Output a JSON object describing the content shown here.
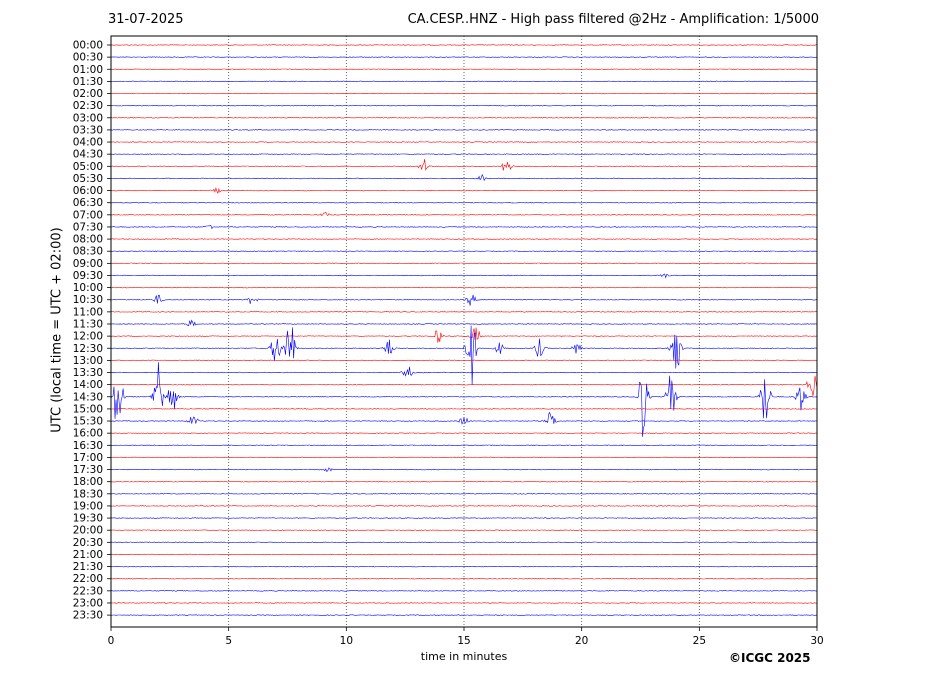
{
  "header": {
    "date": "31-07-2025",
    "title": "CA.CESP..HNZ - High pass filtered @2Hz - Amplification: 1/5000"
  },
  "footer": {
    "copyright": "©ICGC 2025"
  },
  "chart_data": {
    "type": "line",
    "title": "CA.CESP..HNZ - High pass filtered @2Hz - Amplification: 1/5000",
    "xlabel": "time in minutes",
    "ylabel": "UTC (local time = UTC + 02:00)",
    "xlim": [
      0,
      30
    ],
    "x_ticks": [
      0,
      5,
      10,
      15,
      20,
      25,
      30
    ],
    "y_ticks": [
      "00:00",
      "00:30",
      "01:00",
      "01:30",
      "02:00",
      "02:30",
      "03:00",
      "03:30",
      "04:00",
      "04:30",
      "05:00",
      "05:30",
      "06:00",
      "06:30",
      "07:00",
      "07:30",
      "08:00",
      "08:30",
      "09:00",
      "09:30",
      "10:00",
      "10:30",
      "11:00",
      "11:30",
      "12:00",
      "12:30",
      "13:00",
      "13:30",
      "14:00",
      "14:30",
      "15:00",
      "15:30",
      "16:00",
      "16:30",
      "17:00",
      "17:30",
      "18:00",
      "18:30",
      "19:00",
      "19:30",
      "20:00",
      "20:30",
      "21:00",
      "21:30",
      "22:00",
      "22:30",
      "23:00",
      "23:30"
    ],
    "trace_colors": [
      "#ff0000",
      "#0000ff"
    ],
    "grid": "vertical dotted at x ticks",
    "events": [
      {
        "row": "05:00",
        "t": 13.3,
        "amp": 0.6
      },
      {
        "row": "05:00",
        "t": 16.8,
        "amp": 0.9
      },
      {
        "row": "05:30",
        "t": 15.8,
        "amp": 0.3
      },
      {
        "row": "06:00",
        "t": 4.5,
        "amp": 0.2
      },
      {
        "row": "07:00",
        "t": 9.1,
        "amp": 0.2
      },
      {
        "row": "07:30",
        "t": 4.2,
        "amp": 0.2
      },
      {
        "row": "09:30",
        "t": 23.5,
        "amp": 0.2
      },
      {
        "row": "10:30",
        "t": 2.0,
        "amp": 0.4
      },
      {
        "row": "10:30",
        "t": 6.0,
        "amp": 0.4
      },
      {
        "row": "10:30",
        "t": 15.3,
        "amp": 0.5
      },
      {
        "row": "11:30",
        "t": 3.4,
        "amp": 0.3
      },
      {
        "row": "12:00",
        "t": 13.9,
        "amp": 0.6
      },
      {
        "row": "12:00",
        "t": 15.5,
        "amp": 0.8
      },
      {
        "row": "12:30",
        "t": 7.0,
        "amp": 1.5
      },
      {
        "row": "12:30",
        "t": 7.6,
        "amp": 3.0
      },
      {
        "row": "12:30",
        "t": 11.8,
        "amp": 0.8
      },
      {
        "row": "12:30",
        "t": 15.3,
        "amp": 3.5
      },
      {
        "row": "12:30",
        "t": 16.5,
        "amp": 0.5
      },
      {
        "row": "12:30",
        "t": 18.2,
        "amp": 0.8
      },
      {
        "row": "12:30",
        "t": 19.8,
        "amp": 0.5
      },
      {
        "row": "12:30",
        "t": 24.0,
        "amp": 2.5
      },
      {
        "row": "13:30",
        "t": 12.6,
        "amp": 0.6
      },
      {
        "row": "14:00",
        "t": 29.8,
        "amp": 1.2
      },
      {
        "row": "14:30",
        "t": 0.3,
        "amp": 3.5
      },
      {
        "row": "14:30",
        "t": 2.0,
        "amp": 3.5
      },
      {
        "row": "14:30",
        "t": 2.6,
        "amp": 1.5
      },
      {
        "row": "14:30",
        "t": 22.6,
        "amp": 3.5
      },
      {
        "row": "14:30",
        "t": 23.8,
        "amp": 2.0
      },
      {
        "row": "14:30",
        "t": 27.8,
        "amp": 3.0
      },
      {
        "row": "14:30",
        "t": 29.3,
        "amp": 1.2
      },
      {
        "row": "15:30",
        "t": 3.5,
        "amp": 0.5
      },
      {
        "row": "15:30",
        "t": 15.0,
        "amp": 0.4
      },
      {
        "row": "15:30",
        "t": 18.7,
        "amp": 0.8
      },
      {
        "row": "17:30",
        "t": 9.2,
        "amp": 0.2
      }
    ]
  }
}
